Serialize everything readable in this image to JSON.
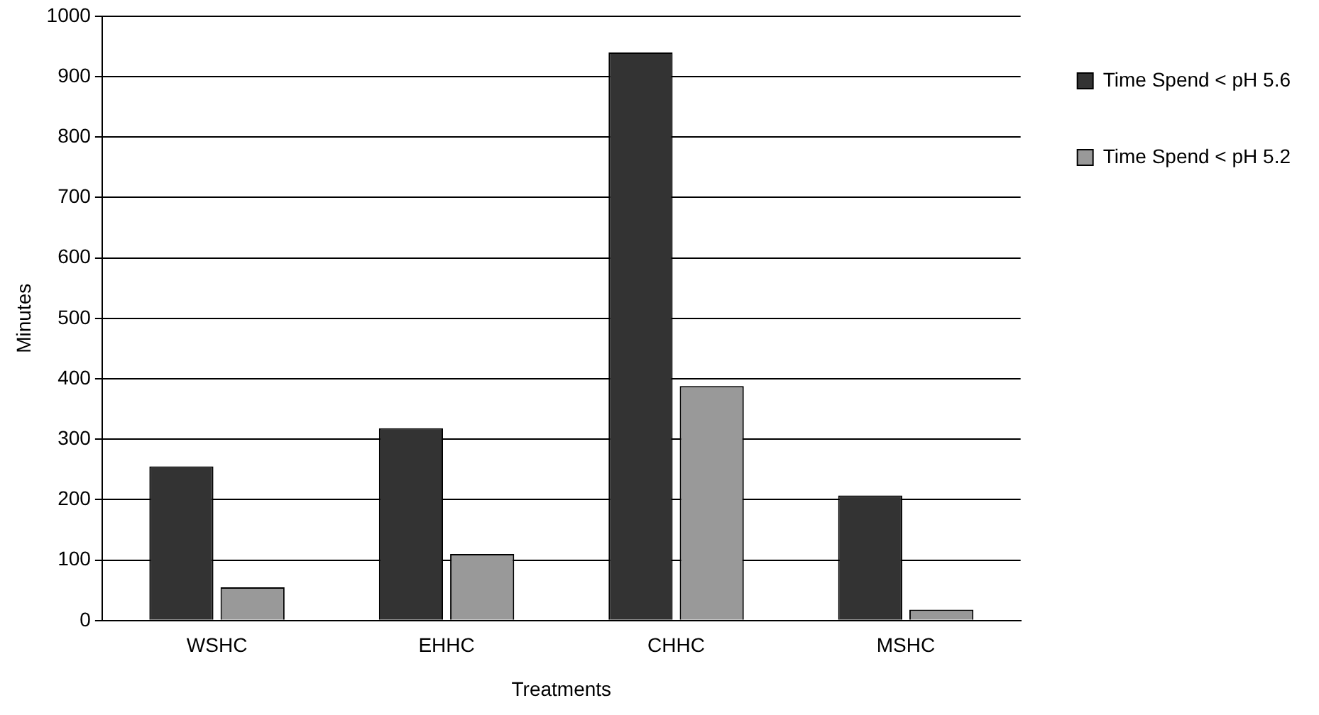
{
  "chart_data": {
    "type": "bar",
    "xlabel": "Treatments",
    "ylabel": "Minutes",
    "categories": [
      "WSHC",
      "EHHC",
      "CHHC",
      "MSHC"
    ],
    "series": [
      {
        "name": "Time Spend < pH 5.6",
        "color": "#333333",
        "values": [
          255,
          318,
          940,
          207
        ]
      },
      {
        "name": "Time Spend < pH 5.2",
        "color": "#999999",
        "values": [
          55,
          110,
          388,
          18
        ]
      }
    ],
    "ylim": [
      0,
      1000
    ],
    "yticks": [
      0,
      100,
      200,
      300,
      400,
      500,
      600,
      700,
      800,
      900,
      1000
    ],
    "grid": "y",
    "legend": "top right"
  }
}
